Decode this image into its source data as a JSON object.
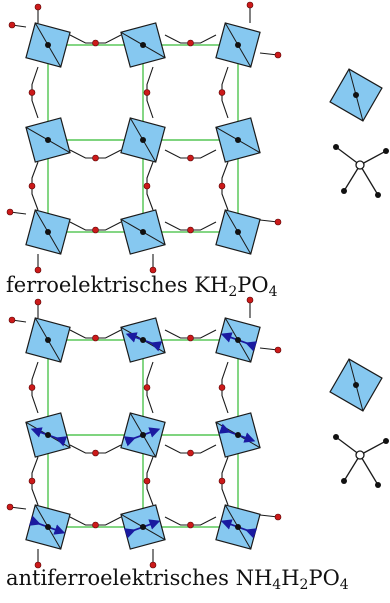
{
  "figure": {
    "panels": [
      {
        "id": "ferro",
        "caption": {
          "prefix": "ferroelektrisches ",
          "formula": [
            [
              "KH",
              "2"
            ],
            [
              "PO",
              "4"
            ]
          ]
        },
        "dipole_arrows": false
      },
      {
        "id": "antiferro",
        "caption": {
          "prefix": "antiferroelektrisches ",
          "formula": [
            [
              "NH",
              "4"
            ],
            [
              "H",
              "2"
            ],
            [
              "PO",
              "4"
            ]
          ]
        },
        "dipole_arrows": true
      }
    ]
  },
  "colors": {
    "tetrahedron_fill": "#86c8f0",
    "outline": "#1a1a1a",
    "oxygen": "#cc1a1a",
    "green_cell": "#33bb33",
    "arrow": "#1a1aa0",
    "phosphorus": "#111111"
  }
}
